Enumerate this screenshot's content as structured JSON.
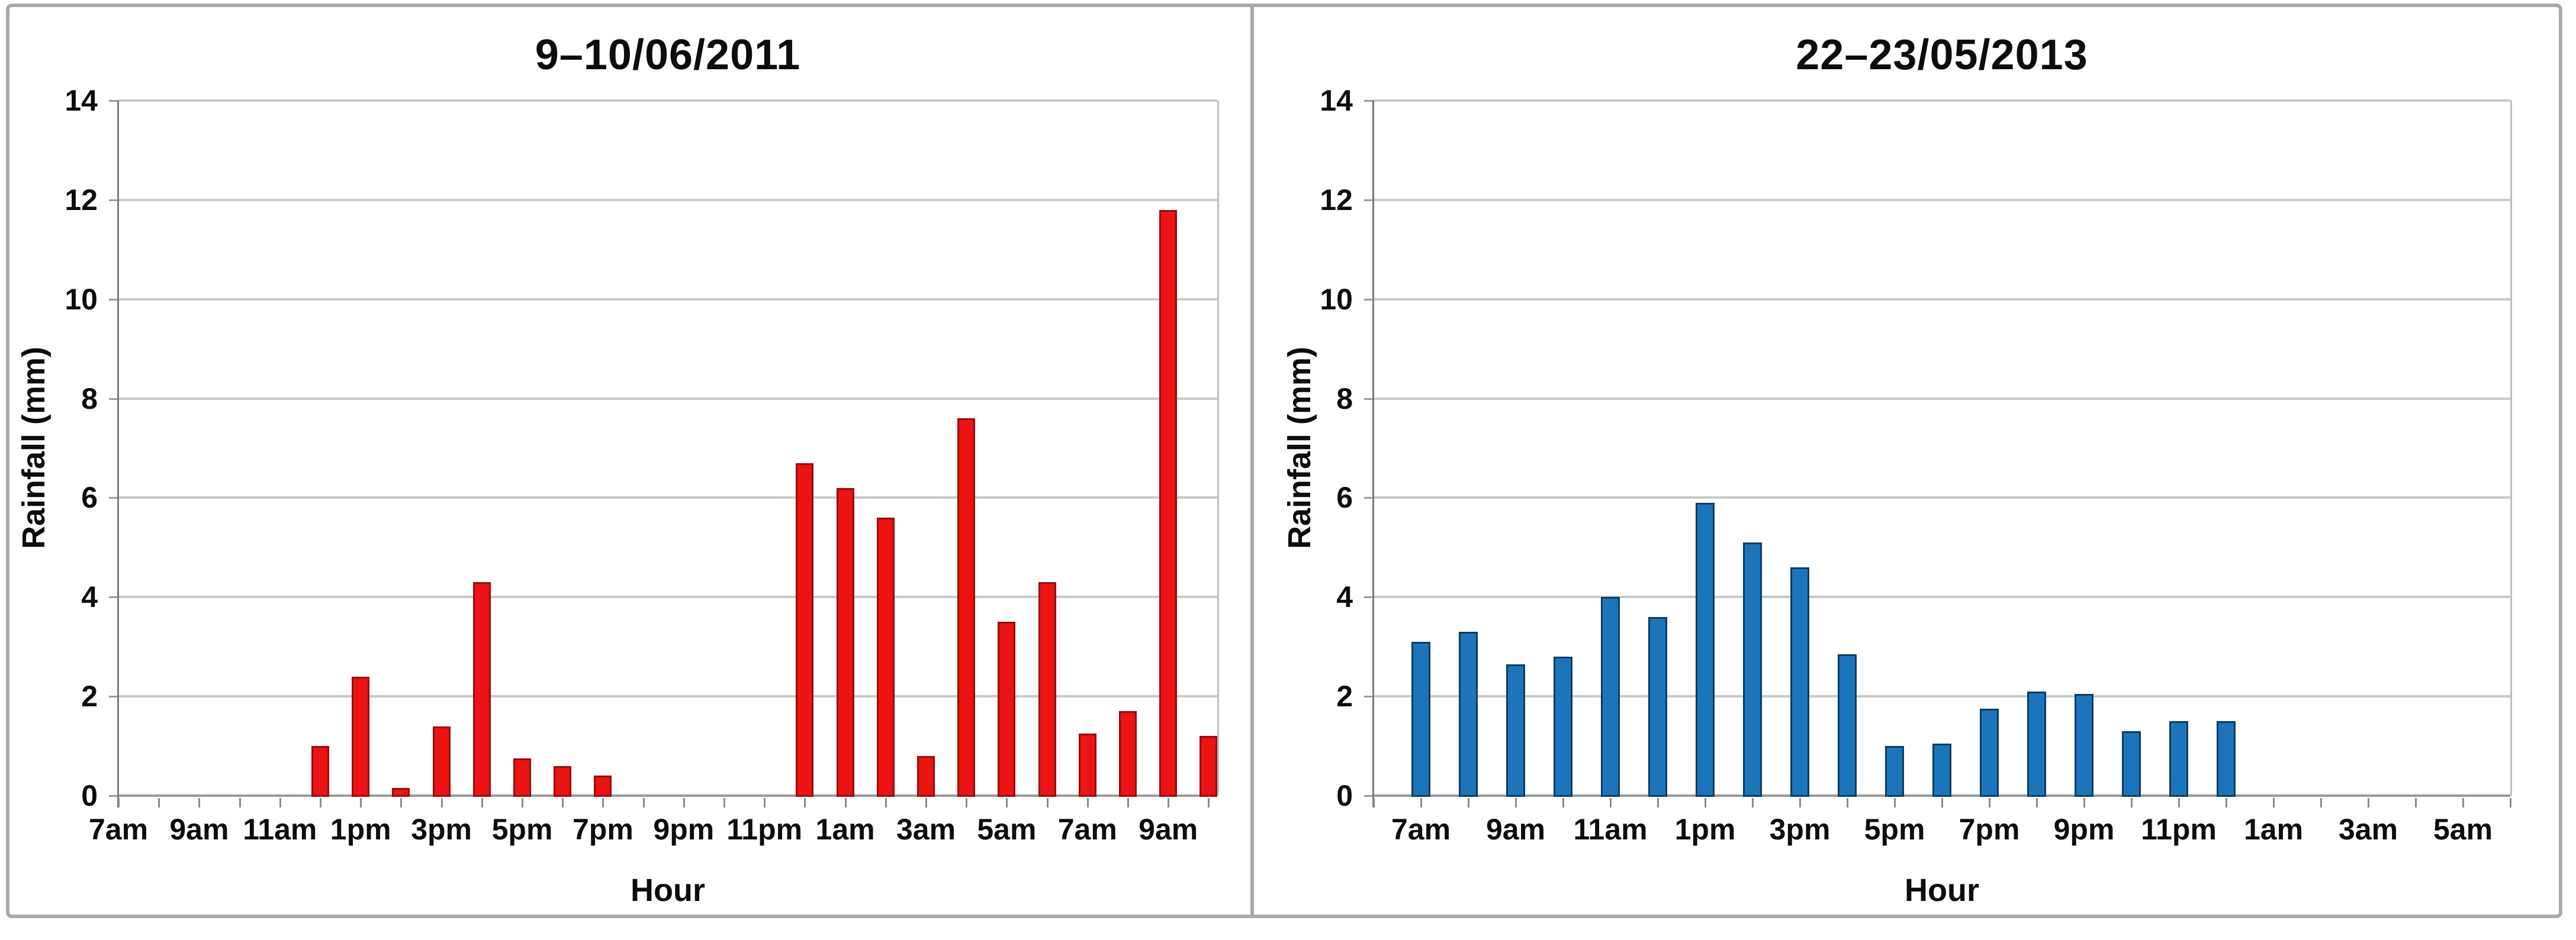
{
  "page": {
    "background": "#ffffff",
    "frame_color": "#a9a9a9"
  },
  "chart_data": [
    {
      "type": "bar",
      "title": "9–10/06/2011",
      "xlabel": "Hour",
      "ylabel": "Rainfall (mm)",
      "ylim": [
        0,
        14
      ],
      "yticks": [
        0,
        2,
        4,
        6,
        8,
        10,
        12,
        14
      ],
      "grid": "horizontal",
      "legend": "none",
      "bar_color": "#ec1313",
      "bar_border_color": "#990d0d",
      "label_start": 0,
      "label_every": 2,
      "categories": [
        "7am",
        "8am",
        "9am",
        "10am",
        "11am",
        "12pm",
        "1pm",
        "2pm",
        "3pm",
        "4pm",
        "5pm",
        "6pm",
        "7pm",
        "8pm",
        "9pm",
        "10pm",
        "11pm",
        "12am",
        "1am",
        "2am",
        "3am",
        "4am",
        "5am",
        "6am",
        "7am",
        "8am",
        "9am",
        "10am"
      ],
      "values": [
        0,
        0,
        0,
        0,
        0,
        1.0,
        2.4,
        0.15,
        1.4,
        4.3,
        0.75,
        0.6,
        0.4,
        0,
        0,
        0,
        0,
        6.7,
        6.2,
        5.6,
        0.8,
        7.6,
        3.5,
        4.3,
        1.25,
        1.7,
        11.8,
        1.2
      ]
    },
    {
      "type": "bar",
      "title": "22–23/05/2013",
      "xlabel": "Hour",
      "ylabel": "Rainfall (mm)",
      "ylim": [
        0,
        14
      ],
      "yticks": [
        0,
        2,
        4,
        6,
        8,
        10,
        12,
        14
      ],
      "grid": "horizontal",
      "legend": "none",
      "bar_color": "#1b75bb",
      "bar_border_color": "#0d3c63",
      "label_start": 1,
      "label_every": 2,
      "categories": [
        "6am",
        "7am",
        "8am",
        "9am",
        "10am",
        "11am",
        "12pm",
        "1pm",
        "2pm",
        "3pm",
        "4pm",
        "5pm",
        "6pm",
        "7pm",
        "8pm",
        "9pm",
        "10pm",
        "11pm",
        "12am",
        "1am",
        "2am",
        "3am",
        "4am",
        "5am",
        "6am"
      ],
      "values": [
        0,
        3.1,
        3.3,
        2.65,
        2.8,
        4.0,
        3.6,
        5.9,
        5.1,
        4.6,
        2.85,
        1.0,
        1.05,
        1.75,
        2.1,
        2.05,
        1.3,
        1.5,
        1.5,
        0,
        0,
        0,
        0,
        0,
        0
      ]
    }
  ]
}
